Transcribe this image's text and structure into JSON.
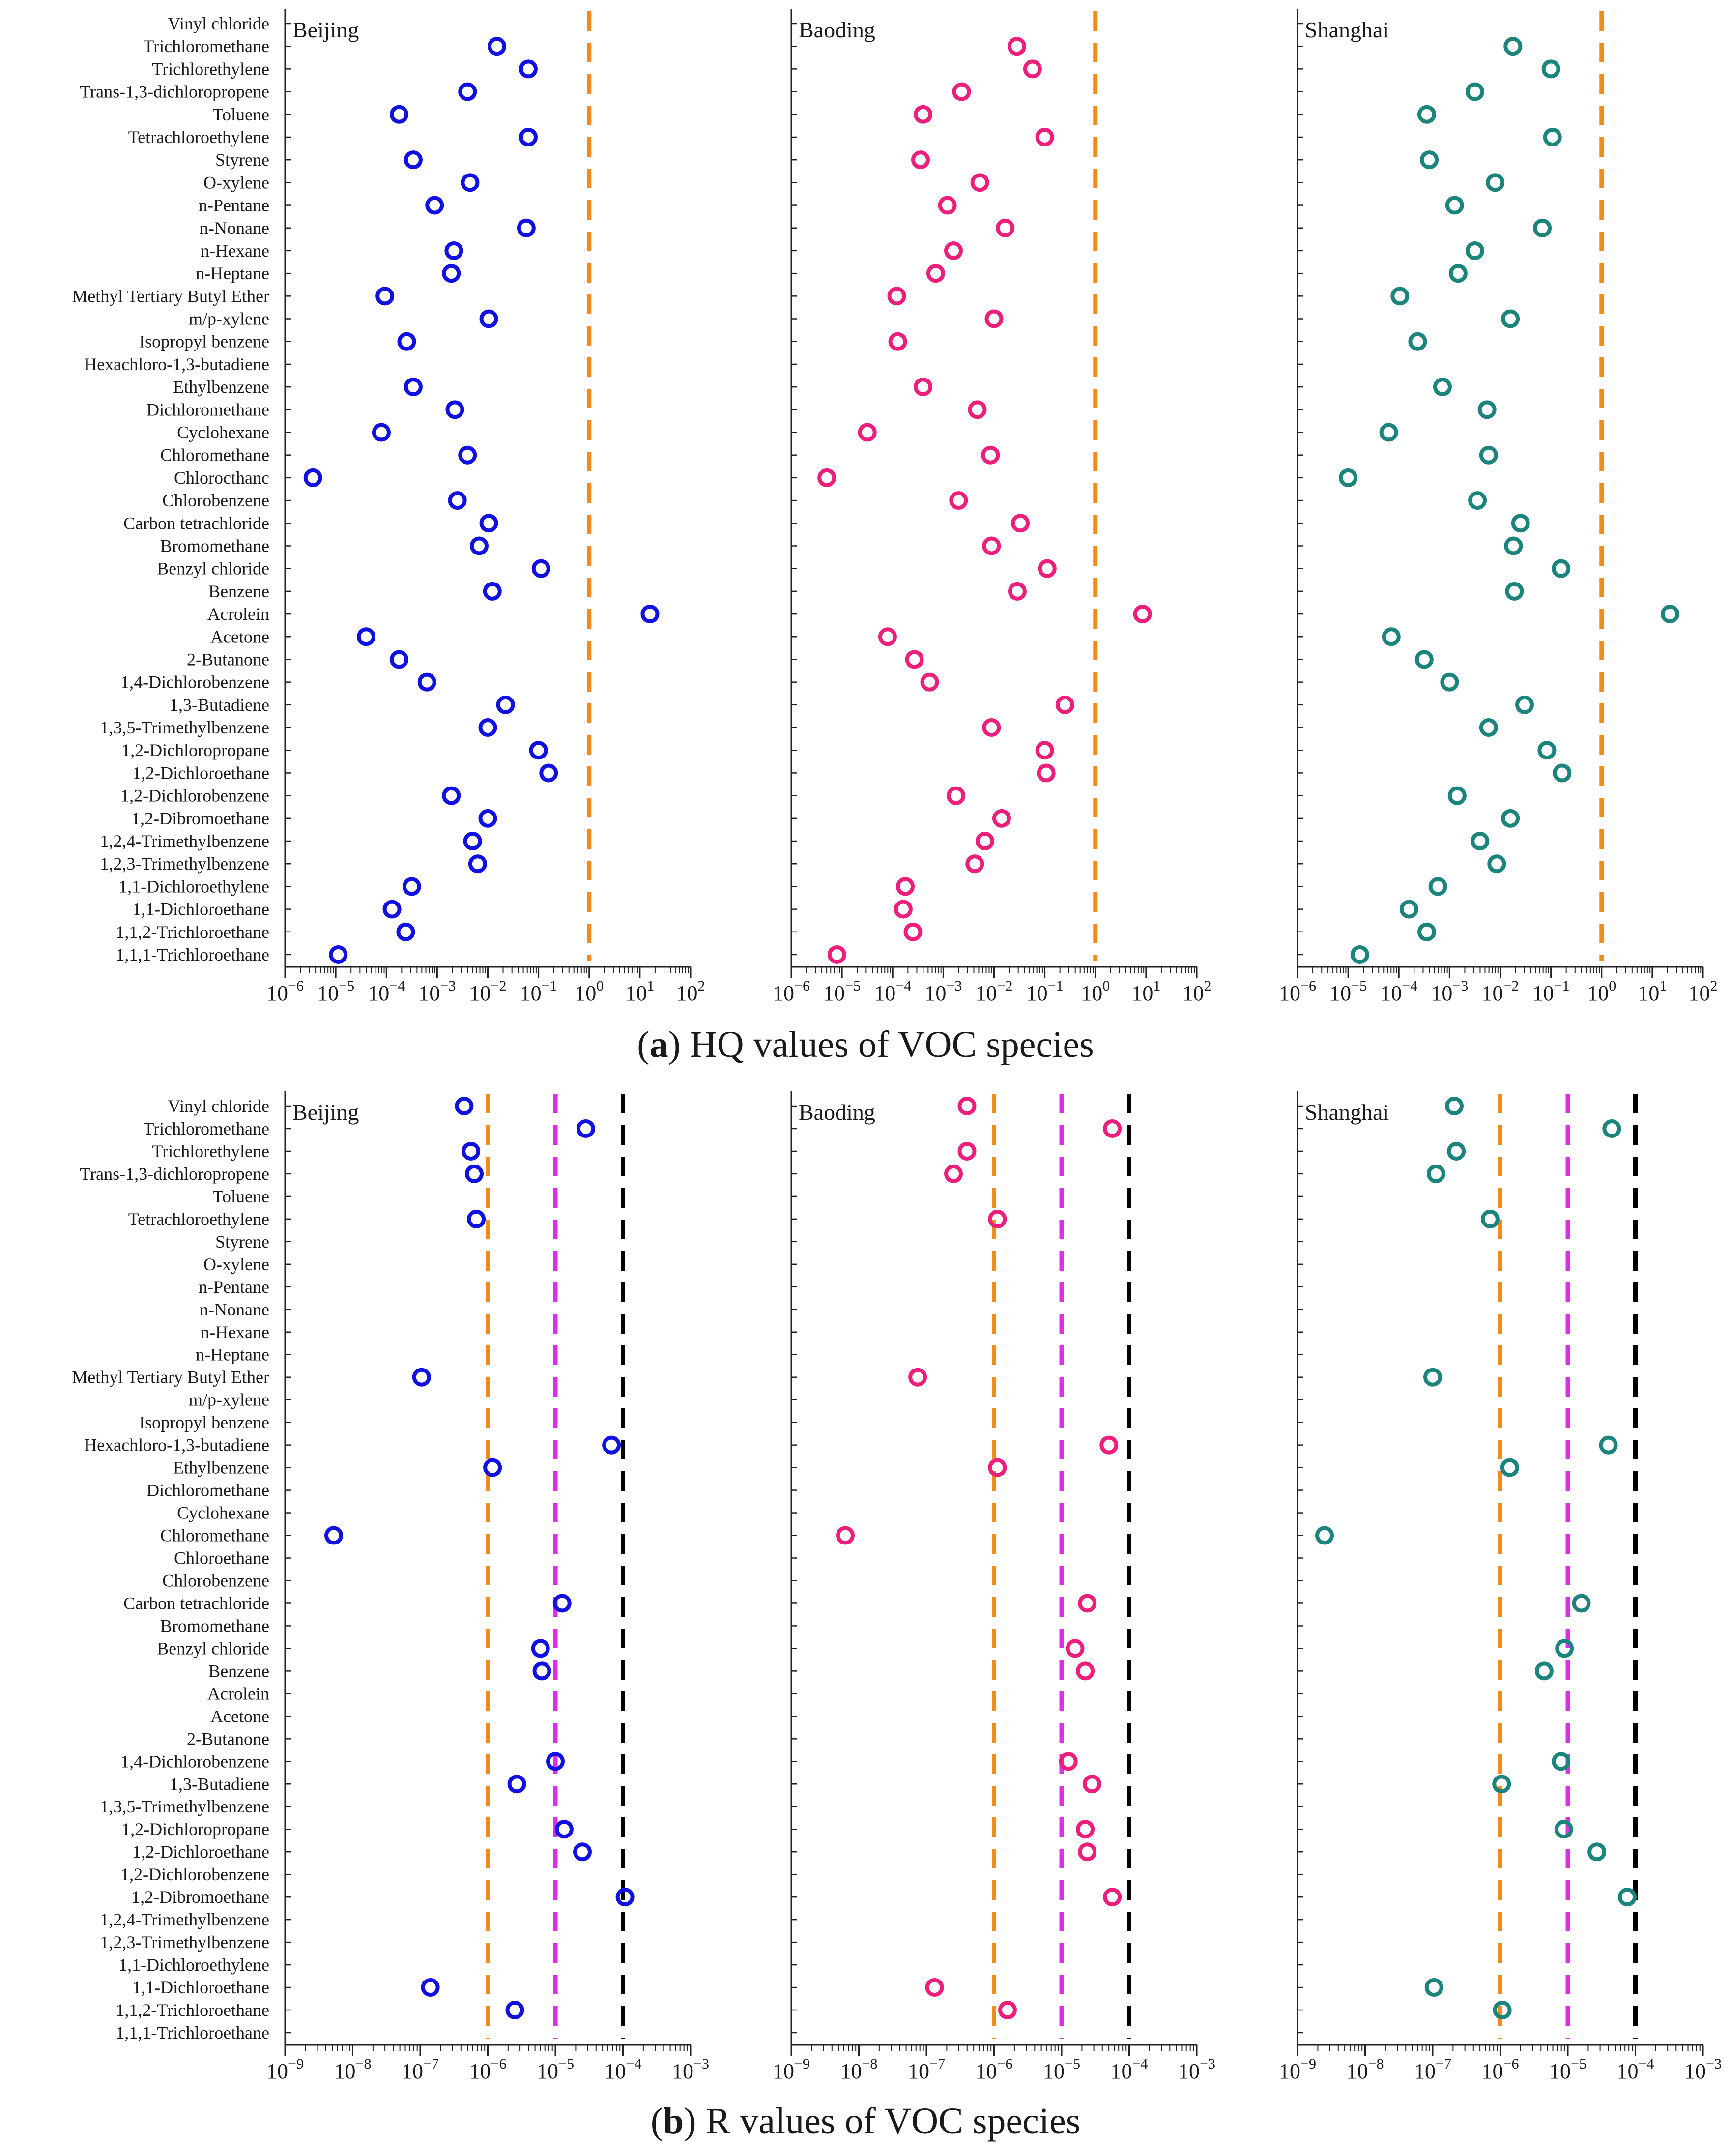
{
  "figure": {
    "cities": [
      "Beijing",
      "Baoding",
      "Shanghai"
    ],
    "city_colors": [
      "#1010e0",
      "#ee1f7c",
      "#1b847c"
    ]
  },
  "species": [
    "Vinyl chloride",
    "Trichloromethane",
    "Trichlorethylene",
    "Trans-1,3-dichloropropene",
    "Toluene",
    "Tetrachloroethylene",
    "Styrene",
    "O-xylene",
    "n-Pentane",
    "n-Nonane",
    "n-Hexane",
    "n-Heptane",
    "Methyl Tertiary Butyl Ether",
    "m/p-xylene",
    "Isopropyl benzene",
    "Hexachloro-1,3-butadiene",
    "Ethylbenzene",
    "Dichloromethane",
    "Cyclohexane",
    "Chloromethane",
    "Chloroethane",
    "Chlorobenzene",
    "Carbon tetrachloride",
    "Bromomethane",
    "Benzyl chloride",
    "Benzene",
    "Acrolein",
    "Acetone",
    "2-Butanone",
    "1,4-Dichlorobenzene",
    "1,3-Butadiene",
    "1,3,5-Trimethylbenzene",
    "1,2-Dichloropropane",
    "1,2-Dichloroethane",
    "1,2-Dichlorobenzene",
    "1,2-Dibromoethane",
    "1,2,4-Trimethylbenzene",
    "1,2,3-Trimethylbenzene",
    "1,1-Dichloroethylene",
    "1,1-Dichloroethane",
    "1,1,2-Trichloroethane",
    "1,1,1-Trichloroethane"
  ],
  "chart_data": [
    {
      "type": "scatter",
      "caption_letter": "a",
      "caption_text": "HQ values of VOC species",
      "x_scale": "log10",
      "xlim_exponent": [
        -6,
        2
      ],
      "tick_exponents": [
        -6,
        -5,
        -4,
        -3,
        -2,
        -1,
        0,
        1,
        2
      ],
      "species_labels": [
        "Vinyl chloride",
        "Trichloromethane",
        "Trichlorethylene",
        "Trans-1,3-dichloropropene",
        "Toluene",
        "Tetrachloroethylene",
        "Styrene",
        "O-xylene",
        "n-Pentane",
        "n-Nonane",
        "n-Hexane",
        "n-Heptane",
        "Methyl Tertiary Butyl Ether",
        "m/p-xylene",
        "Isopropyl benzene",
        "Hexachloro-1,3-butadiene",
        "Ethylbenzene",
        "Dichloromethane",
        "Cyclohexane",
        "Chloromethane",
        "Chlorocthanc",
        "Chlorobenzene",
        "Carbon tetrachloride",
        "Bromomethane",
        "Benzyl chloride",
        "Benzene",
        "Acrolein",
        "Acetone",
        "2-Butanone",
        "1,4-Dichlorobenzene",
        "1,3-Butadiene",
        "1,3,5-Trimethylbenzene",
        "1,2-Dichloropropane",
        "1,2-Dichloroethane",
        "1,2-Dichlorobenzene",
        "1,2-Dibromoethane",
        "1,2,4-Trimethylbenzene",
        "1,2,3-Trimethylbenzene",
        "1,1-Dichloroethylene",
        "1,1-Dichloroethane",
        "1,1,2-Trichloroethane",
        "1,1,1-Trichloroethane"
      ],
      "reference_lines": [
        {
          "value": 1,
          "color": "#f28a1c"
        }
      ],
      "series": [
        {
          "name": "Beijing",
          "log10_values": [
            null,
            -1.82,
            -1.2,
            -2.4,
            -3.75,
            -1.2,
            -3.47,
            -2.35,
            -3.05,
            -1.24,
            -2.67,
            -2.72,
            -4.03,
            -1.98,
            -3.6,
            null,
            -3.47,
            -2.65,
            -4.1,
            -2.4,
            -5.45,
            -2.6,
            -1.98,
            -2.17,
            -0.95,
            -1.91,
            1.2,
            -4.4,
            -3.75,
            -3.2,
            -1.65,
            -2.0,
            -1.0,
            -0.8,
            -2.72,
            -2.0,
            -2.3,
            -2.2,
            -3.5,
            -3.89,
            -3.62,
            -4.95
          ]
        },
        {
          "name": "Baoding",
          "log10_values": [
            null,
            -1.55,
            -1.24,
            -2.64,
            -3.4,
            -1.0,
            -3.45,
            -2.28,
            -2.92,
            -1.78,
            -2.8,
            -3.15,
            -3.92,
            -2.0,
            -3.9,
            null,
            -3.4,
            -2.33,
            -4.5,
            -2.07,
            -5.3,
            -2.7,
            -1.48,
            -2.05,
            -0.95,
            -1.54,
            0.93,
            -4.1,
            -3.57,
            -3.27,
            -0.6,
            -2.05,
            -1.0,
            -0.97,
            -2.75,
            -1.85,
            -2.18,
            -2.38,
            -3.75,
            -3.79,
            -3.6,
            -5.1
          ]
        },
        {
          "name": "Shanghai",
          "log10_values": [
            null,
            -1.75,
            -1.0,
            -2.5,
            -3.45,
            -0.97,
            -3.4,
            -2.1,
            -2.9,
            -1.17,
            -2.5,
            -2.83,
            -3.98,
            -1.8,
            -3.63,
            null,
            -3.14,
            -2.26,
            -4.2,
            -2.23,
            -5.0,
            -2.45,
            -1.6,
            -1.74,
            -0.8,
            -1.72,
            1.35,
            -4.15,
            -3.5,
            -3.0,
            -1.52,
            -2.23,
            -1.08,
            -0.78,
            -2.85,
            -1.8,
            -2.4,
            -2.07,
            -3.23,
            -3.8,
            -3.45,
            -4.77
          ]
        }
      ]
    },
    {
      "type": "scatter",
      "caption_letter": "b",
      "caption_text": "R values of VOC species",
      "x_scale": "log10",
      "xlim_exponent": [
        -9,
        -3
      ],
      "tick_exponents": [
        -9,
        -8,
        -7,
        -6,
        -5,
        -4,
        -3
      ],
      "species_labels": [
        "Vinyl chloride",
        "Trichloromethane",
        "Trichlorethylene",
        "Trans-1,3-dichloropropene",
        "Toluene",
        "Tetrachloroethylene",
        "Styrene",
        "O-xylene",
        "n-Pentane",
        "n-Nonane",
        "n-Hexane",
        "n-Heptane",
        "Methyl Tertiary Butyl Ether",
        "m/p-xylene",
        "Isopropyl benzene",
        "Hexachloro-1,3-butadiene",
        "Ethylbenzene",
        "Dichloromethane",
        "Cyclohexane",
        "Chloromethane",
        "Chloroethane",
        "Chlorobenzene",
        "Carbon tetrachloride",
        "Bromomethane",
        "Benzyl chloride",
        "Benzene",
        "Acrolein",
        "Acetone",
        "2-Butanone",
        "1,4-Dichlorobenzene",
        "1,3-Butadiene",
        "1,3,5-Trimethylbenzene",
        "1,2-Dichloropropane",
        "1,2-Dichloroethane",
        "1,2-Dichlorobenzene",
        "1,2-Dibromoethane",
        "1,2,4-Trimethylbenzene",
        "1,2,3-Trimethylbenzene",
        "1,1-Dichloroethylene",
        "1,1-Dichloroethane",
        "1,1,2-Trichloroethane",
        "1,1,1-Trichloroethane"
      ],
      "reference_lines": [
        {
          "value": 1e-06,
          "color": "#f28a1c"
        },
        {
          "value": 1e-05,
          "color": "#d930e8"
        },
        {
          "value": 0.0001,
          "color": "#000000"
        }
      ],
      "series": [
        {
          "name": "Beijing",
          "log10_values": [
            -6.35,
            -4.55,
            -6.25,
            -6.2,
            null,
            -6.17,
            null,
            null,
            null,
            null,
            null,
            null,
            -6.98,
            null,
            null,
            -4.17,
            -5.93,
            null,
            null,
            -8.28,
            null,
            null,
            -4.9,
            null,
            -5.22,
            -5.2,
            null,
            null,
            null,
            -5.0,
            -5.57,
            null,
            -4.87,
            -4.6,
            null,
            -3.97,
            null,
            null,
            null,
            -6.85,
            -5.6,
            null
          ]
        },
        {
          "name": "Baoding",
          "log10_values": [
            -6.4,
            -4.25,
            -6.4,
            -6.6,
            null,
            -5.95,
            null,
            null,
            null,
            null,
            null,
            null,
            -7.13,
            null,
            null,
            -4.3,
            -5.95,
            null,
            null,
            -8.2,
            null,
            null,
            -4.62,
            null,
            -4.8,
            -4.65,
            null,
            null,
            null,
            -4.9,
            -4.55,
            null,
            -4.65,
            -4.62,
            null,
            -4.25,
            null,
            null,
            null,
            -6.88,
            -5.8,
            null
          ]
        },
        {
          "name": "Shanghai",
          "log10_values": [
            -6.68,
            -4.35,
            -6.65,
            -6.95,
            null,
            -6.15,
            null,
            null,
            null,
            null,
            null,
            null,
            -7.0,
            null,
            null,
            -4.4,
            -5.86,
            null,
            null,
            -8.6,
            null,
            null,
            -4.8,
            null,
            -5.05,
            -5.35,
            null,
            null,
            null,
            -5.1,
            -5.98,
            null,
            -5.06,
            -4.57,
            null,
            -4.12,
            null,
            null,
            null,
            -6.98,
            -5.97,
            null
          ]
        }
      ]
    }
  ]
}
